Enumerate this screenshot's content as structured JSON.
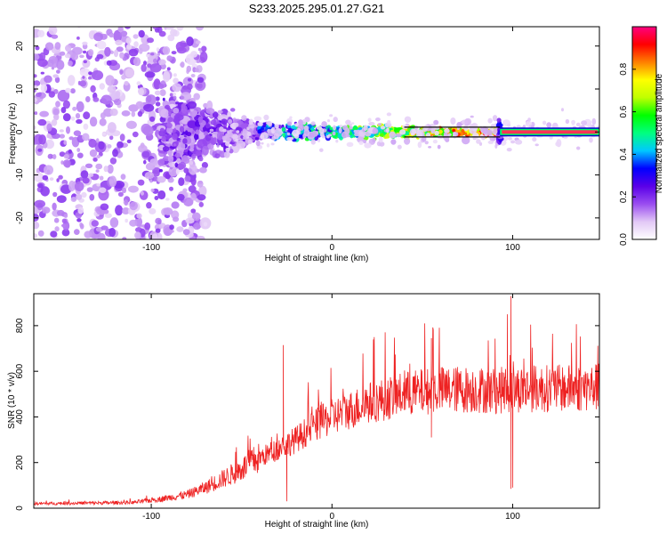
{
  "figure_title": "S233.2025.295.01.27.G21",
  "chart_data": [
    {
      "type": "heatmap",
      "name": "spectrogram",
      "xlabel": "Height of straight line (km)",
      "ylabel": "Frequency (Hz)",
      "xlim": [
        -165,
        148
      ],
      "ylim": [
        -25,
        24.5
      ],
      "xticks": [
        -100,
        0,
        100
      ],
      "yticks": [
        -20,
        -10,
        0,
        10,
        20
      ],
      "colorbar": {
        "label": "Normalized spectral amplitude",
        "range": [
          0,
          1
        ],
        "ticks": [
          "0.0",
          "0.2",
          "0.4",
          "0.6",
          "0.8"
        ],
        "colors": [
          "#ffffff",
          "#e2c8f6",
          "#9a4df0",
          "#5a00e8",
          "#0000ff",
          "#00c8ff",
          "#00ff80",
          "#00ff00",
          "#c0ff00",
          "#ffff00",
          "#ff8000",
          "#ff0000",
          "#ff0080"
        ]
      },
      "features": {
        "scatter_region_km": [
          -165,
          -95
        ],
        "transition_region_km": [
          -95,
          -40
        ],
        "carrier_line_km": [
          -40,
          148
        ],
        "carrier_frequency_hz": 0,
        "strong_line_start_km": 93,
        "spike_km": 93
      }
    },
    {
      "type": "line",
      "name": "snr",
      "xlabel": "Height of straight line (km)",
      "ylabel": "SNR (10 * v/v)",
      "xlim": [
        -165,
        148
      ],
      "ylim": [
        0,
        940
      ],
      "xticks": [
        -100,
        0,
        100
      ],
      "yticks": [
        0,
        200,
        400,
        600,
        800
      ],
      "color": "#ee2222",
      "envelope": {
        "x": [
          -165,
          -110,
          -95,
          -80,
          -70,
          -60,
          -50,
          -45,
          -40,
          -35,
          -30,
          -20,
          -10,
          0,
          10,
          20,
          30,
          40,
          50,
          60,
          70,
          80,
          90,
          100,
          110,
          120,
          130,
          148
        ],
        "y": [
          20,
          25,
          40,
          60,
          90,
          130,
          170,
          200,
          220,
          240,
          260,
          300,
          360,
          400,
          430,
          460,
          480,
          500,
          510,
          520,
          520,
          520,
          515,
          520,
          525,
          525,
          525,
          530
        ]
      },
      "noise_amplitude": 0.2,
      "spikes": [
        {
          "x": -27,
          "y": 715
        },
        {
          "x": -25,
          "y": 30
        },
        {
          "x": 55,
          "y": 745
        },
        {
          "x": 55,
          "y": 310
        },
        {
          "x": 97,
          "y": 850
        },
        {
          "x": 99,
          "y": 930
        },
        {
          "x": 99,
          "y": 85
        },
        {
          "x": 100,
          "y": 90
        },
        {
          "x": 120,
          "y": 560
        },
        {
          "x": 145,
          "y": 560
        }
      ]
    }
  ]
}
